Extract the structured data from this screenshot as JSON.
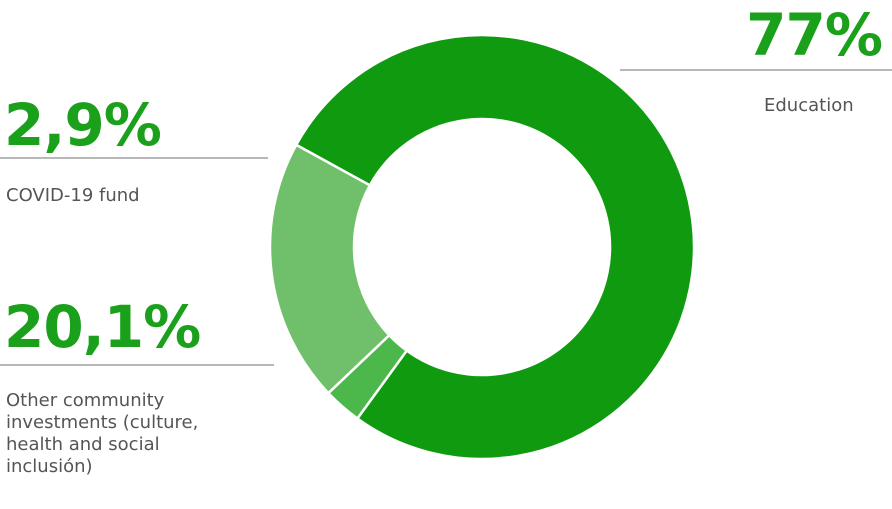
{
  "chart_data": {
    "type": "pie",
    "style": "donut",
    "unit": "%",
    "title": "",
    "slices": [
      {
        "label": "Education",
        "value": 77,
        "display": "77%",
        "color": "#0f9a0f"
      },
      {
        "label": "COVID-19 fund",
        "value": 2.9,
        "display": "2,9%",
        "color": "#4cb84c"
      },
      {
        "label": "Other community investments (culture, health and social inclusión)",
        "value": 20.1,
        "display": "20,1%",
        "color": "#70bf6a"
      }
    ]
  },
  "labels": {
    "education": {
      "pct": "77%",
      "text": "Education"
    },
    "covid": {
      "pct": "2,9%",
      "text": "COVID-19 fund"
    },
    "other": {
      "pct": "20,1%",
      "lines": [
        "Other community",
        "investments (culture,",
        "health and social",
        "inclusión)"
      ]
    }
  }
}
